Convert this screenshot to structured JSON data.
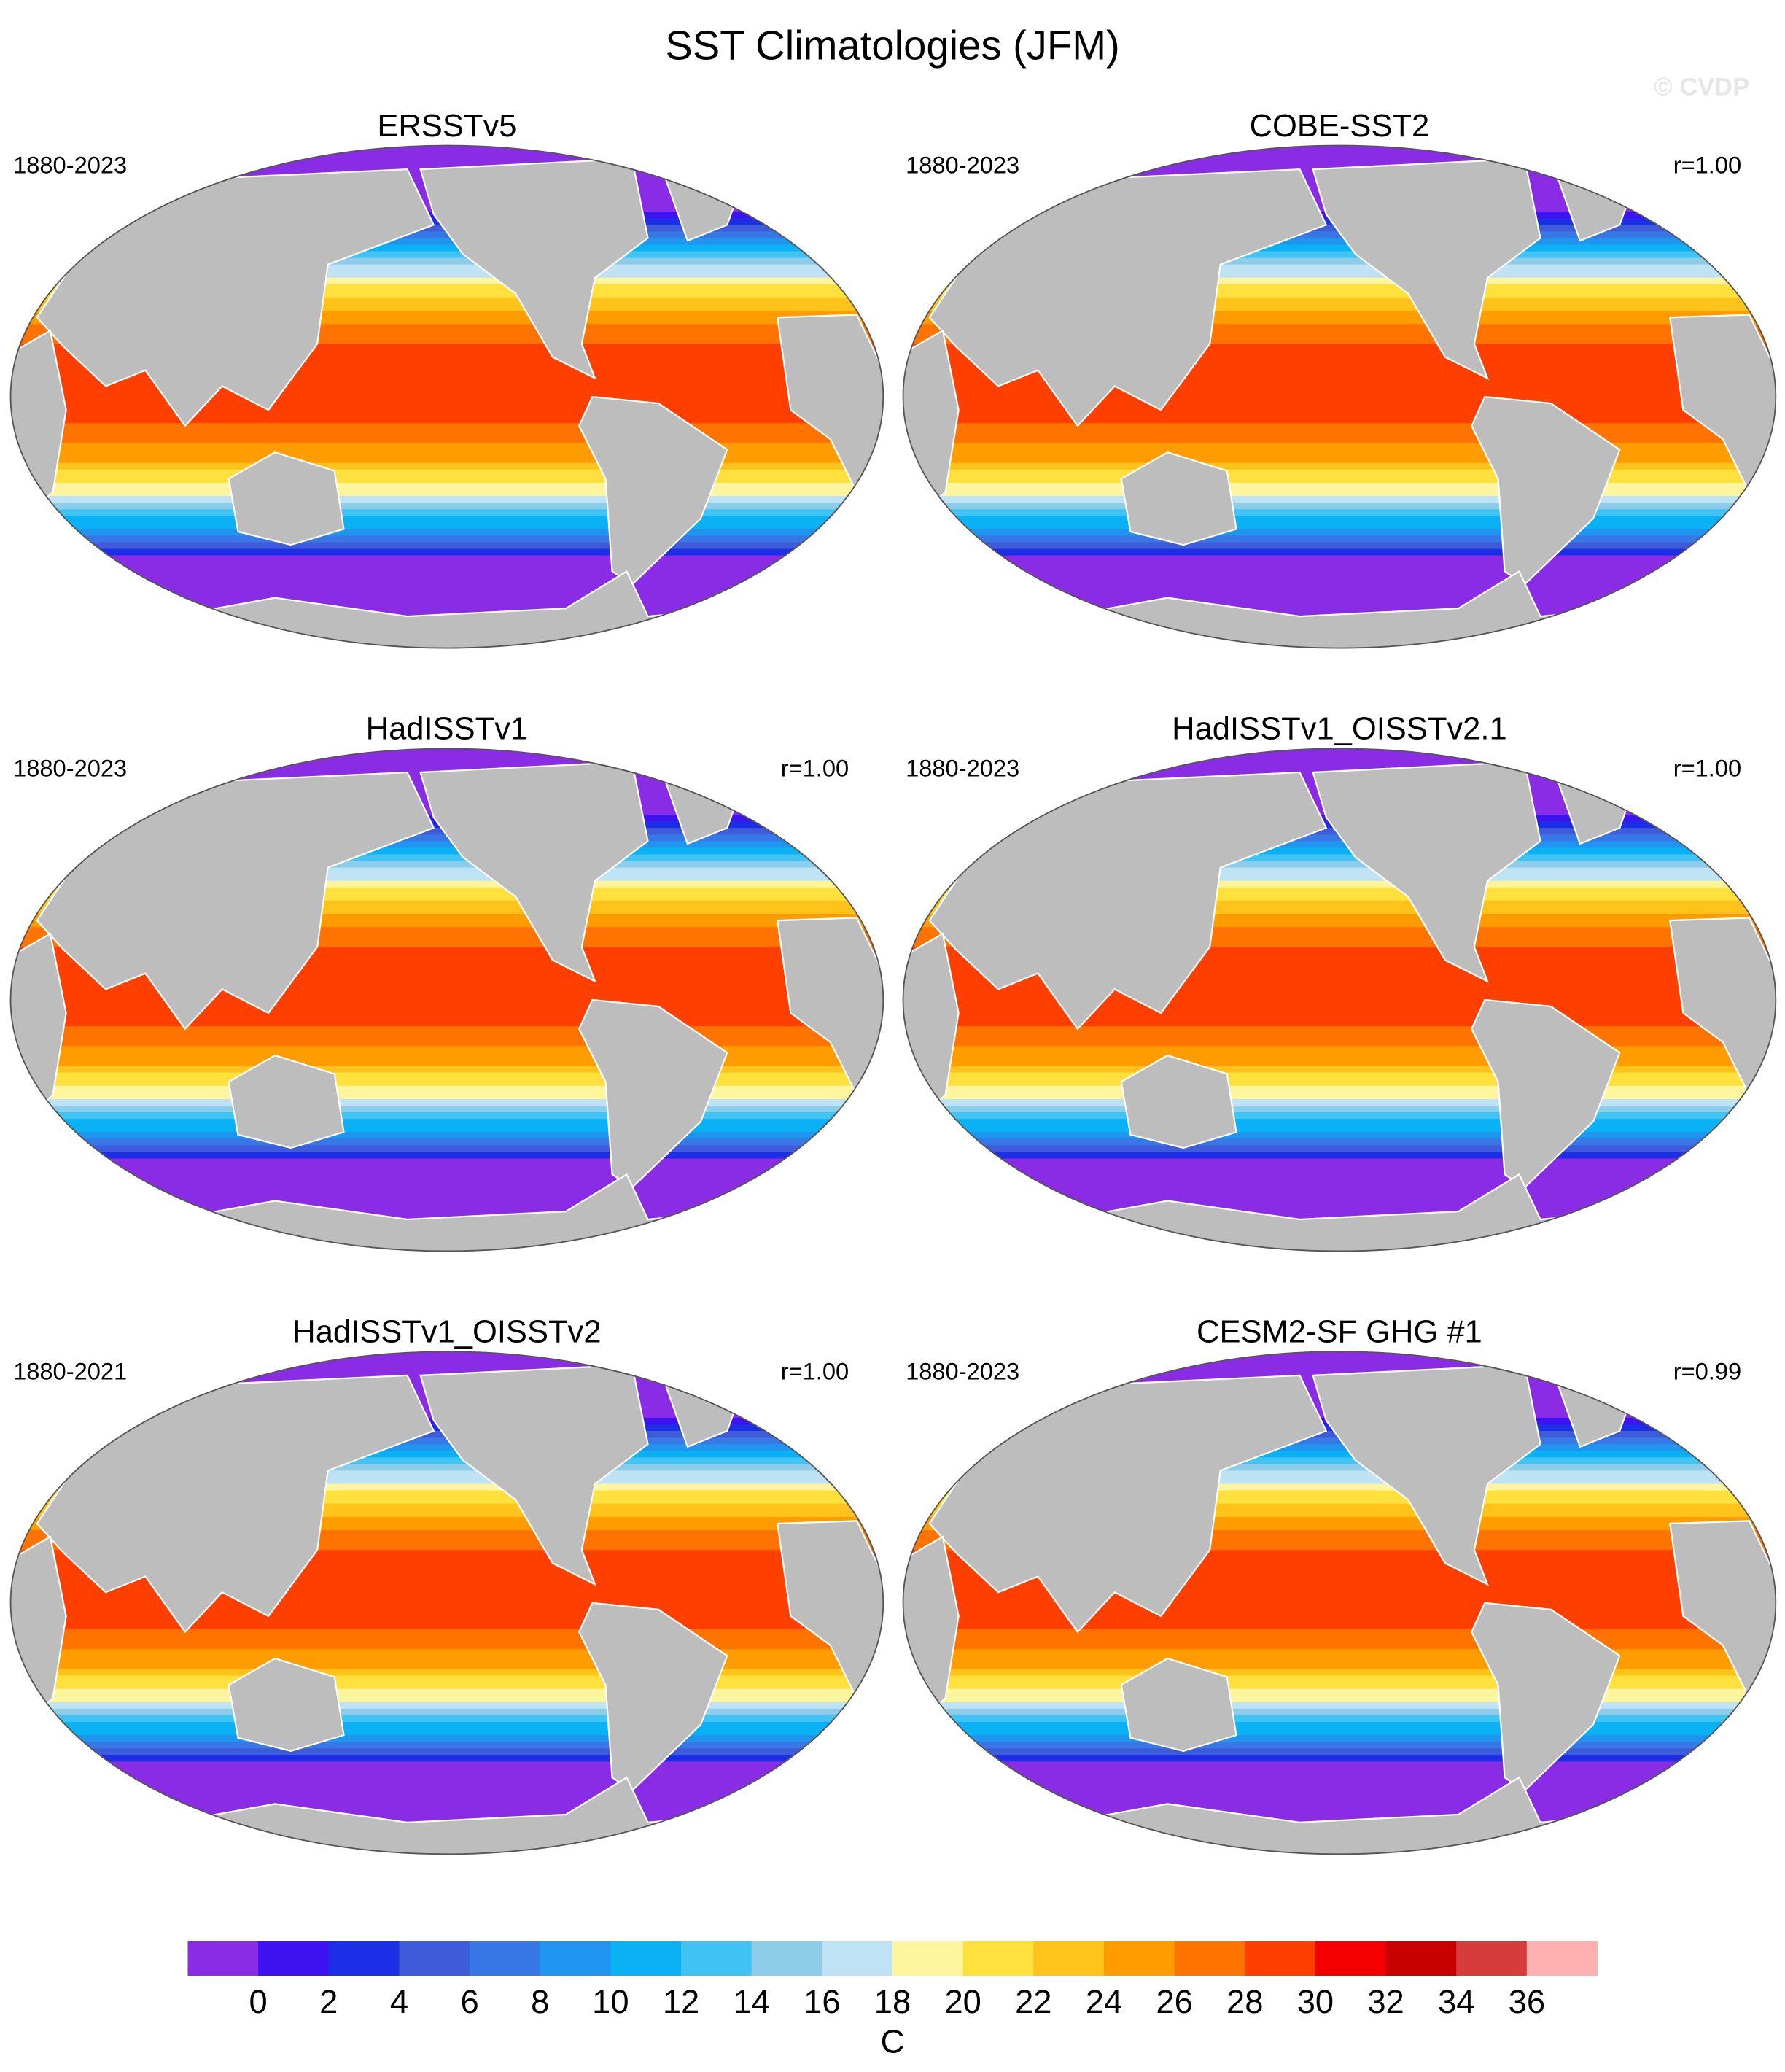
{
  "title": "SST Climatologies (JFM)",
  "watermark": "© CVDP",
  "panels": [
    {
      "title": "ERSSTv5",
      "years": "1880-2023"
    },
    {
      "title": "COBE-SST2",
      "years": "1880-2023",
      "r": "r=1.00"
    },
    {
      "title": "HadISSTv1",
      "years": "1880-2023",
      "r": "r=1.00"
    },
    {
      "title": "HadISSTv1_OISSTv2.1",
      "years": "1880-2023",
      "r": "r=1.00"
    },
    {
      "title": "HadISSTv1_OISSTv2",
      "years": "1880-2021",
      "r": "r=1.00"
    },
    {
      "title": "CESM2-SF GHG #1",
      "years": "1880-2023",
      "r": "r=0.99"
    }
  ],
  "colorbar": {
    "colors": [
      "#8a2ce6",
      "#3f12f2",
      "#1c2fe6",
      "#3e5cd9",
      "#3878e6",
      "#2095f0",
      "#0ab2f5",
      "#40c4f5",
      "#8ecdea",
      "#bfe2f4",
      "#fff59e",
      "#ffe03c",
      "#ffc31c",
      "#ff9d00",
      "#ff7400",
      "#ff3f00",
      "#f50000",
      "#c80000",
      "#d63c3c",
      "#ffb1b1"
    ],
    "ticks": [
      0,
      2,
      4,
      6,
      8,
      10,
      12,
      14,
      16,
      18,
      20,
      22,
      24,
      26,
      28,
      30,
      32,
      34,
      36
    ],
    "unit": "C"
  }
}
